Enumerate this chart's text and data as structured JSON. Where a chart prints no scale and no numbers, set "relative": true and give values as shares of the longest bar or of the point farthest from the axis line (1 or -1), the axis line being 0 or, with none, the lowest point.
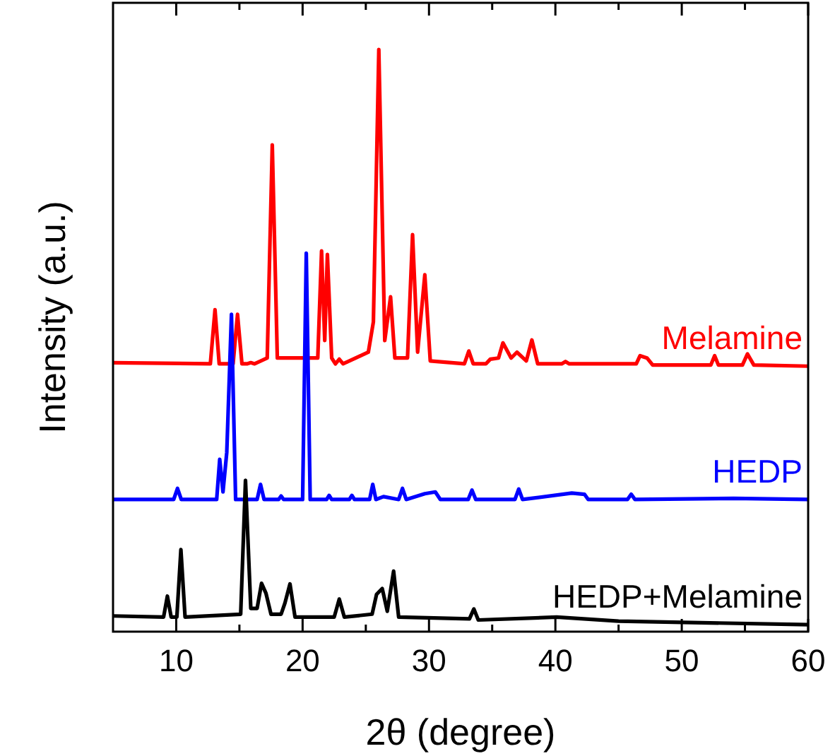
{
  "chart_data": {
    "type": "line",
    "xlabel": "2θ (degree)",
    "ylabel": "Intensity (a.u.)",
    "relative": true,
    "xlim": [
      5,
      60
    ],
    "xticks": [
      10,
      {
        "value": 15,
        "label": null
      },
      20,
      {
        "value": 25,
        "label": null
      },
      30,
      {
        "value": 35,
        "label": null
      },
      40,
      {
        "value": 45,
        "label": null
      },
      50,
      {
        "value": 55,
        "label": null
      },
      60
    ],
    "marker": "none",
    "line_style": "solid",
    "series": [
      {
        "name": "Melamine",
        "color": "#ff0000",
        "x": [
          5,
          12.7,
          13.07,
          13.4,
          14.5,
          14.85,
          15.2,
          15.6,
          15.9,
          16.2,
          17.2,
          17.6,
          18.0,
          21.2,
          21.5,
          21.75,
          21.96,
          22.3,
          22.6,
          22.9,
          23.2,
          25.2,
          25.6,
          26.03,
          26.5,
          26.96,
          27.3,
          28.3,
          28.7,
          29.1,
          29.67,
          30.1,
          32.8,
          33.15,
          33.5,
          34.5,
          34.85,
          35.5,
          35.85,
          36.5,
          36.96,
          37.7,
          38.14,
          38.6,
          40.5,
          40.8,
          41.1,
          46.4,
          46.7,
          47.25,
          47.7,
          52.3,
          52.6,
          52.9,
          54.8,
          55.2,
          55.7,
          60
        ],
        "values": [
          0.462,
          0.46,
          0.553,
          0.46,
          0.46,
          0.545,
          0.46,
          0.46,
          0.462,
          0.46,
          0.47,
          0.836,
          0.47,
          0.47,
          0.654,
          0.5,
          0.648,
          0.47,
          0.46,
          0.468,
          0.46,
          0.48,
          0.532,
          1,
          0.5,
          0.575,
          0.47,
          0.47,
          0.682,
          0.48,
          0.613,
          0.465,
          0.46,
          0.482,
          0.46,
          0.46,
          0.468,
          0.47,
          0.496,
          0.47,
          0.48,
          0.465,
          0.501,
          0.46,
          0.46,
          0.464,
          0.46,
          0.46,
          0.474,
          0.47,
          0.458,
          0.458,
          0.474,
          0.458,
          0.458,
          0.477,
          0.458,
          0.456
        ]
      },
      {
        "name": "HEDP",
        "color": "#0000ff",
        "x": [
          5,
          9.8,
          10.1,
          10.4,
          13.2,
          13.44,
          13.7,
          14.0,
          14.37,
          14.7,
          16.4,
          16.67,
          16.95,
          18.1,
          18.3,
          18.5,
          20.0,
          20.29,
          20.6,
          21.9,
          22.1,
          22.3,
          23.7,
          23.9,
          24.1,
          25.3,
          25.55,
          25.8,
          26.4,
          27.6,
          27.9,
          28.2,
          29.67,
          30.5,
          30.9,
          33.1,
          33.4,
          33.7,
          36.8,
          37.1,
          37.4,
          41.3,
          42.3,
          42.6,
          45.7,
          46.0,
          46.3,
          54.1,
          60
        ],
        "values": [
          0.227,
          0.227,
          0.246,
          0.227,
          0.227,
          0.296,
          0.24,
          0.308,
          0.545,
          0.227,
          0.227,
          0.253,
          0.227,
          0.227,
          0.233,
          0.227,
          0.227,
          0.65,
          0.227,
          0.227,
          0.234,
          0.227,
          0.227,
          0.234,
          0.227,
          0.227,
          0.253,
          0.227,
          0.232,
          0.227,
          0.246,
          0.227,
          0.237,
          0.24,
          0.227,
          0.227,
          0.243,
          0.227,
          0.227,
          0.245,
          0.227,
          0.238,
          0.236,
          0.227,
          0.227,
          0.236,
          0.227,
          0.229,
          0.227
        ]
      },
      {
        "name": "HEDP+Melamine",
        "color": "#000000",
        "x": [
          5,
          9.0,
          9.3,
          9.6,
          10.05,
          10.37,
          10.7,
          15.1,
          15.48,
          15.9,
          16.4,
          16.75,
          17.1,
          17.5,
          18.3,
          18.6,
          19.0,
          19.4,
          22.5,
          22.9,
          23.3,
          25.5,
          25.85,
          26.3,
          26.7,
          27.2,
          27.6,
          33.2,
          33.55,
          33.9,
          40.1,
          45,
          60
        ],
        "values": [
          0.027,
          0.025,
          0.061,
          0.025,
          0.025,
          0.141,
          0.025,
          0.03,
          0.26,
          0.04,
          0.04,
          0.083,
          0.066,
          0.03,
          0.03,
          0.049,
          0.082,
          0.025,
          0.025,
          0.056,
          0.025,
          0.03,
          0.064,
          0.074,
          0.035,
          0.104,
          0.025,
          0.022,
          0.039,
          0.02,
          0.025,
          0.018,
          0.012
        ]
      }
    ]
  }
}
